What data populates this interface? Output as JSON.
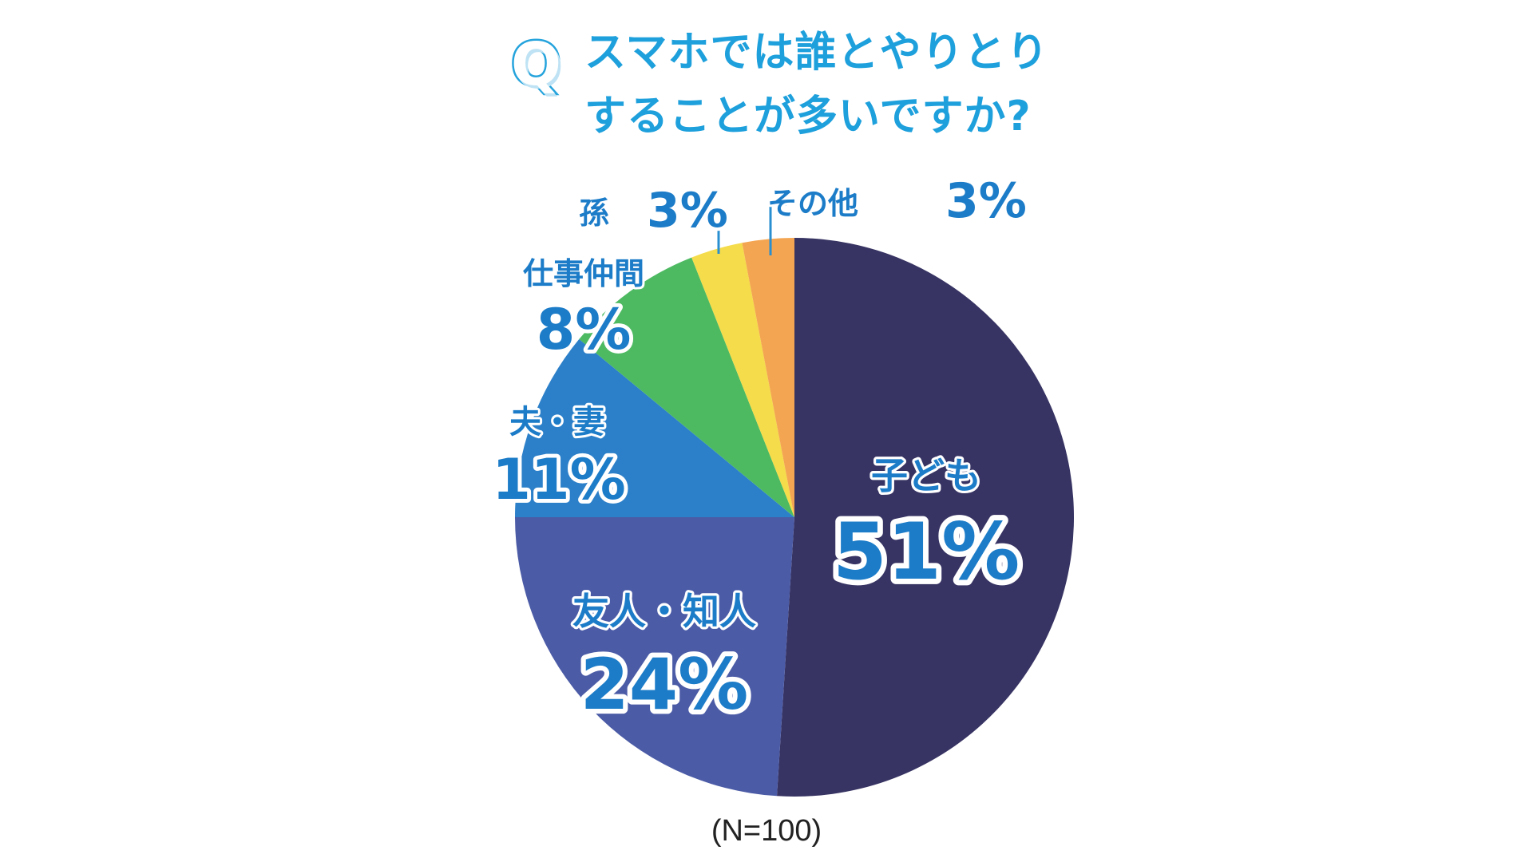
{
  "title": {
    "q_mark": "Q",
    "line1": "スマホでは誰とやりとり",
    "line2": "することが多いですか?"
  },
  "sample_size": "(N=100)",
  "chart_data": {
    "type": "pie",
    "title": "スマホでは誰とやりとりすることが多いですか?",
    "note": "(N=100)",
    "unit": "%",
    "slices": [
      {
        "label": "子ども",
        "value": 51,
        "display": "51%",
        "color": "#373363"
      },
      {
        "label": "友人・知人",
        "value": 24,
        "display": "24%",
        "color": "#4b5ba6"
      },
      {
        "label": "夫・妻",
        "value": 11,
        "display": "11%",
        "color": "#2c80c9"
      },
      {
        "label": "仕事仲間",
        "value": 8,
        "display": "8%",
        "color": "#4dba62"
      },
      {
        "label": "孫",
        "value": 3,
        "display": "3%",
        "color": "#f5dc4a"
      },
      {
        "label": "その他",
        "value": 3,
        "display": "3%",
        "color": "#f4a551"
      }
    ],
    "start": "12 o'clock",
    "direction": "clockwise",
    "legend": "none"
  },
  "colors": {
    "title": "#1ea0dc",
    "label_fill": "#1c7cc8",
    "label_stroke": "#ffffff",
    "leader_line": "#2a8fd0"
  }
}
